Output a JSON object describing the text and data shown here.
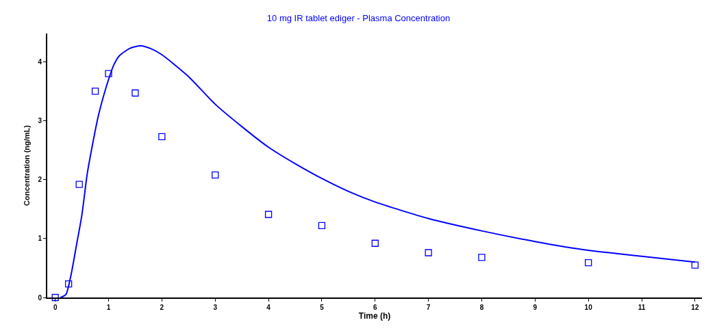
{
  "chart_data": {
    "type": "scatter",
    "title": "10 mg IR tablet ediger - Plasma Concentration",
    "xlabel": "Time (h)",
    "ylabel": "Concentration (ng/mL)",
    "xlim": [
      -0.15,
      12.13
    ],
    "ylim": [
      0,
      4.48
    ],
    "xticks": [
      0,
      1,
      2,
      3,
      4,
      5,
      6,
      7,
      8,
      9,
      10,
      11,
      12
    ],
    "yticks": [
      0,
      1,
      2,
      3,
      4
    ],
    "grid": false,
    "series": [
      {
        "marker": "square",
        "color": "#0000ff",
        "x": [
          0,
          0.25,
          0.45,
          0.75,
          1,
          1.5,
          2,
          3,
          4,
          5,
          6,
          7,
          8,
          10,
          12
        ],
        "values": [
          0,
          0.23,
          1.92,
          3.5,
          3.8,
          3.47,
          2.73,
          2.08,
          1.41,
          1.22,
          0.92,
          0.76,
          0.68,
          0.59,
          0.55
        ]
      },
      {
        "type": "line",
        "marker": "none",
        "line_style": "solid",
        "color": "#0000ff",
        "x": [
          0.1,
          0.2,
          0.3,
          0.4,
          0.5,
          0.6,
          0.7,
          0.8,
          0.9,
          1.0,
          1.1,
          1.2,
          1.4,
          1.6,
          1.8,
          2.0,
          2.5,
          3,
          3.5,
          4,
          4.5,
          5,
          5.5,
          6,
          7,
          8,
          9,
          10,
          11,
          12
        ],
        "values": [
          0,
          0.05,
          0.4,
          0.9,
          1.4,
          2.1,
          2.6,
          3.05,
          3.4,
          3.7,
          3.95,
          4.1,
          4.23,
          4.27,
          4.22,
          4.12,
          3.75,
          3.28,
          2.9,
          2.55,
          2.27,
          2.02,
          1.8,
          1.62,
          1.34,
          1.13,
          0.95,
          0.8,
          0.7,
          0.6
        ]
      }
    ]
  }
}
